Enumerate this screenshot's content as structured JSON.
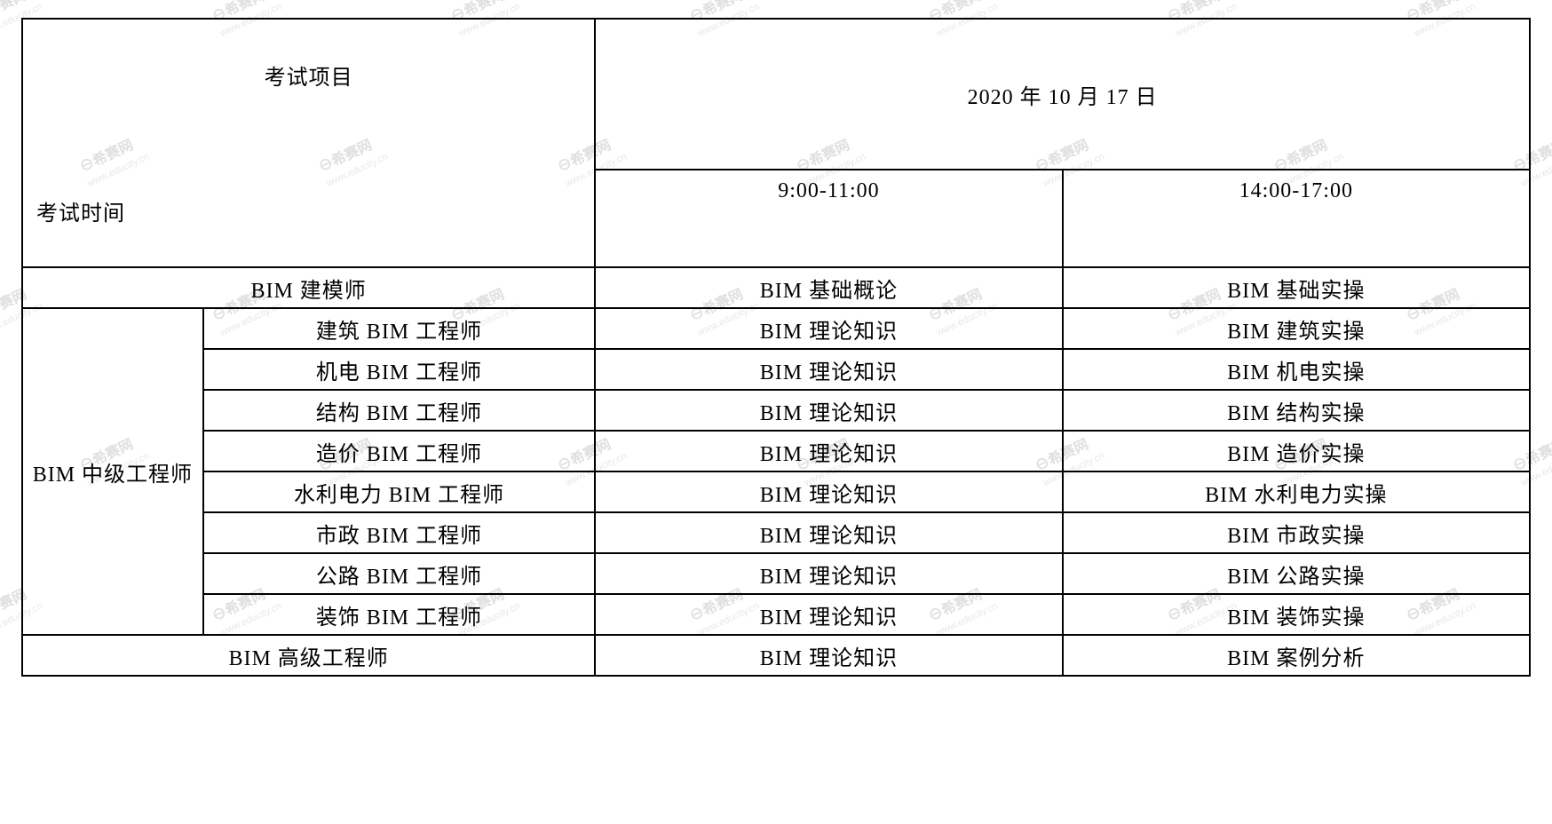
{
  "header": {
    "project_label": "考试项目",
    "time_label": "考试时间",
    "date": "2020 年 10 月 17 日",
    "morning": "9:00-11:00",
    "afternoon": "14:00-17:00"
  },
  "rows": {
    "r1": {
      "name": "BIM 建模师",
      "morning": "BIM 基础概论",
      "afternoon": "BIM 基础实操"
    },
    "intermediate_label": "BIM 中级工程师",
    "r2": {
      "name": "建筑 BIM 工程师",
      "morning": "BIM 理论知识",
      "afternoon": "BIM 建筑实操"
    },
    "r3": {
      "name": "机电 BIM 工程师",
      "morning": "BIM 理论知识",
      "afternoon": "BIM 机电实操"
    },
    "r4": {
      "name": "结构 BIM 工程师",
      "morning": "BIM 理论知识",
      "afternoon": "BIM 结构实操"
    },
    "r5": {
      "name": "造价 BIM 工程师",
      "morning": "BIM 理论知识",
      "afternoon": "BIM 造价实操"
    },
    "r6": {
      "name": "水利电力 BIM 工程师",
      "morning": "BIM 理论知识",
      "afternoon": "BIM 水利电力实操"
    },
    "r7": {
      "name": "市政 BIM 工程师",
      "morning": "BIM 理论知识",
      "afternoon": "BIM 市政实操"
    },
    "r8": {
      "name": "公路 BIM 工程师",
      "morning": "BIM 理论知识",
      "afternoon": "BIM 公路实操"
    },
    "r9": {
      "name": "装饰 BIM 工程师",
      "morning": "BIM 理论知识",
      "afternoon": "BIM 装饰实操"
    },
    "r10": {
      "name": "BIM 高级工程师",
      "morning": "BIM 理论知识",
      "afternoon": "BIM 案例分析"
    }
  },
  "watermark": {
    "cn": "希赛网",
    "en": "www.educity.cn"
  },
  "colors": {
    "border": "#000000",
    "text": "#000000",
    "watermark": "#e8e8e8",
    "background": "#ffffff"
  },
  "layout": {
    "font_family": "SimSun",
    "cell_fontsize": 24,
    "border_width": 2
  }
}
